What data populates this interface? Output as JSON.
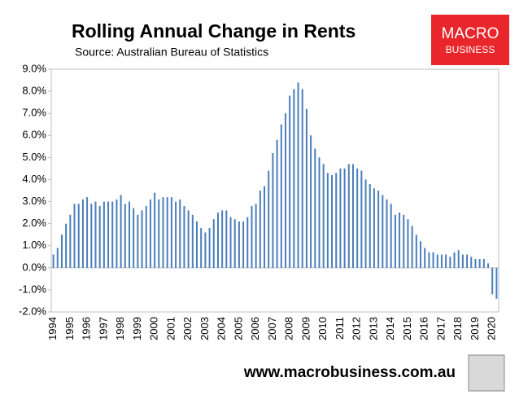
{
  "chart_data": {
    "type": "bar",
    "title": "Rolling Annual Change in Rents",
    "subtitle": "Source: Australian Bureau of Statistics",
    "footer": "www.macrobusiness.com.au",
    "logo": [
      "MACRO",
      "BUSINESS"
    ],
    "color": "#4a7ebb",
    "categories": [
      "1994",
      null,
      null,
      null,
      "1995",
      null,
      null,
      null,
      "1996",
      null,
      null,
      null,
      "1997",
      null,
      null,
      null,
      "1998",
      null,
      null,
      null,
      "1999",
      null,
      null,
      null,
      "2000",
      null,
      null,
      null,
      "2001",
      null,
      null,
      null,
      "2002",
      null,
      null,
      null,
      "2003",
      null,
      null,
      null,
      "2004",
      null,
      null,
      null,
      "2005",
      null,
      null,
      null,
      "2006",
      null,
      null,
      null,
      "2007",
      null,
      null,
      null,
      "2008",
      null,
      null,
      null,
      "2009",
      null,
      null,
      null,
      "2010",
      null,
      null,
      null,
      "2011",
      null,
      null,
      null,
      "2012",
      null,
      null,
      null,
      "2013",
      null,
      null,
      null,
      "2014",
      null,
      null,
      null,
      "2015",
      null,
      null,
      null,
      "2016",
      null,
      null,
      null,
      "2017",
      null,
      null,
      null,
      "2018",
      null,
      null,
      null,
      "2019",
      null,
      null,
      null,
      "2020",
      null
    ],
    "values": [
      0.6,
      0.9,
      1.5,
      2.0,
      2.4,
      2.9,
      2.9,
      3.1,
      3.2,
      2.9,
      3.0,
      2.8,
      3.0,
      3.0,
      3.0,
      3.1,
      3.3,
      2.9,
      3.0,
      2.7,
      2.4,
      2.6,
      2.8,
      3.1,
      3.4,
      3.1,
      3.2,
      3.2,
      3.2,
      3.0,
      3.1,
      2.8,
      2.6,
      2.4,
      2.1,
      1.8,
      1.6,
      1.8,
      2.2,
      2.5,
      2.6,
      2.6,
      2.3,
      2.2,
      2.1,
      2.1,
      2.3,
      2.8,
      2.9,
      3.5,
      3.7,
      4.4,
      5.2,
      5.8,
      6.5,
      7.0,
      7.8,
      8.1,
      8.4,
      8.1,
      7.2,
      6.0,
      5.4,
      5.0,
      4.7,
      4.3,
      4.2,
      4.3,
      4.5,
      4.5,
      4.7,
      4.7,
      4.5,
      4.4,
      4.0,
      3.8,
      3.6,
      3.5,
      3.3,
      3.1,
      2.9,
      2.4,
      2.5,
      2.4,
      2.2,
      1.9,
      1.5,
      1.2,
      0.9,
      0.7,
      0.7,
      0.6,
      0.6,
      0.6,
      0.5,
      0.7,
      0.8,
      0.6,
      0.6,
      0.5,
      0.4,
      0.4,
      0.4,
      0.2,
      -1.2,
      -1.4
    ],
    "ylim": [
      -2,
      9
    ],
    "yticks": [
      {
        "value": -2,
        "label": "-2.0%"
      },
      {
        "value": -1,
        "label": "-1.0%"
      },
      {
        "value": 0,
        "label": "0.0%"
      },
      {
        "value": 1,
        "label": "1.0%"
      },
      {
        "value": 2,
        "label": "2.0%"
      },
      {
        "value": 3,
        "label": "3.0%"
      },
      {
        "value": 4,
        "label": "4.0%"
      },
      {
        "value": 5,
        "label": "5.0%"
      },
      {
        "value": 6,
        "label": "6.0%"
      },
      {
        "value": 7,
        "label": "7.0%"
      },
      {
        "value": 8,
        "label": "8.0%"
      },
      {
        "value": 9,
        "label": "9.0%"
      }
    ],
    "grid": false
  }
}
